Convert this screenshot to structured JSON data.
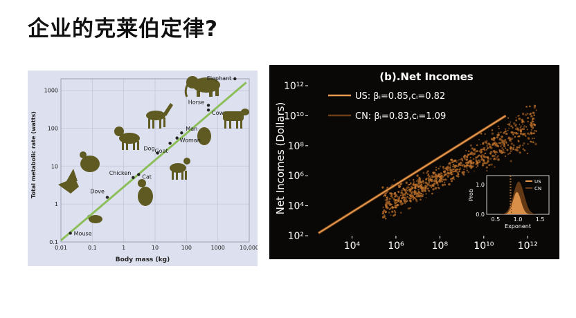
{
  "slide": {
    "title": "企业的克莱伯定律?"
  },
  "chart_data": [
    {
      "type": "scatter",
      "xlabel": "Body mass (kg)",
      "ylabel": "Total metabolic rate (watts)",
      "xscale": "log",
      "yscale": "log",
      "xlim": [
        0.01,
        10000
      ],
      "ylim": [
        0.1,
        2000
      ],
      "x_ticks": [
        "0.01",
        "0.1",
        "1",
        "10",
        "100",
        "1000",
        "10,000"
      ],
      "y_ticks": [
        "0.1",
        "1",
        "10",
        "100",
        "1000"
      ],
      "grid": true,
      "points": [
        {
          "label": "Mouse",
          "x": 0.02,
          "y": 0.17
        },
        {
          "label": "Dove",
          "x": 0.3,
          "y": 1.5
        },
        {
          "label": "Chicken",
          "x": 2,
          "y": 5
        },
        {
          "label": "Cat",
          "x": 3,
          "y": 6
        },
        {
          "label": "Dog",
          "x": 12,
          "y": 22
        },
        {
          "label": "Goat",
          "x": 30,
          "y": 40
        },
        {
          "label": "Woman",
          "x": 50,
          "y": 55
        },
        {
          "label": "Man",
          "x": 70,
          "y": 75
        },
        {
          "label": "Horse",
          "x": 500,
          "y": 400
        },
        {
          "label": "Cow",
          "x": 500,
          "y": 300
        },
        {
          "label": "Elephant",
          "x": 3500,
          "y": 2000
        }
      ],
      "fit_line": {
        "x": [
          0.01,
          8000
        ],
        "y": [
          0.11,
          1600
        ]
      },
      "colors": {
        "background": "#dde0ee",
        "fit": "#8cbf5a",
        "silhouette": "#5e5a22"
      }
    },
    {
      "type": "scatter",
      "title": "(b).Net Incomes",
      "ylabel": "Net Incomes (Dollars)",
      "xscale": "log",
      "yscale": "log",
      "x_ticks": [
        "10⁴",
        "10⁶",
        "10⁸",
        "10¹⁰",
        "10¹²"
      ],
      "y_ticks": [
        "10²",
        "10⁴",
        "10⁶",
        "10⁸",
        "10¹⁰",
        "10¹²"
      ],
      "xlim": [
        100,
        10000000000000.0
      ],
      "ylim": [
        100,
        1000000000000.0
      ],
      "series": [
        {
          "name": "US: βᵢ=0.85,cᵢ=0.82",
          "beta": 0.85,
          "c": 0.82,
          "color": "#e8994e"
        },
        {
          "name": "CN: βᵢ=0.83,cᵢ=1.09",
          "beta": 0.83,
          "c": 1.09,
          "color": "#6b3e17"
        }
      ],
      "fit_line": {
        "x": [
          300,
          100000000000.0
        ],
        "y": [
          150,
          10000000000.0
        ]
      },
      "inset": {
        "type": "area",
        "xlabel": "Exponent",
        "ylabel": "Prob",
        "x_ticks": [
          "0.5",
          "1.0",
          "1.5"
        ],
        "y_ticks": [
          "0.0",
          "1.0"
        ],
        "legend": [
          "US",
          "CN"
        ],
        "colors": [
          "#e8994e",
          "#6b3e17"
        ]
      },
      "colors": {
        "background": "#0a0806",
        "points": "#c8782e",
        "text": "#ffffff"
      }
    }
  ]
}
